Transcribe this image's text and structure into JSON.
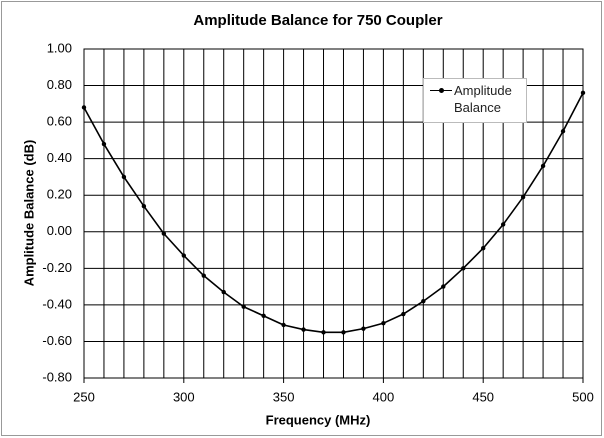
{
  "chart_data": {
    "type": "line",
    "title": "Amplitude Balance for 750 Coupler",
    "xlabel": "Frequency (MHz)",
    "ylabel": "Amplitude Balance (dB)",
    "x": [
      250,
      260,
      270,
      280,
      290,
      300,
      310,
      320,
      330,
      340,
      350,
      360,
      370,
      380,
      390,
      400,
      410,
      420,
      430,
      440,
      450,
      460,
      470,
      480,
      490,
      500
    ],
    "series": [
      {
        "name": "Amplitude Balance",
        "color": "#000000",
        "values": [
          0.68,
          0.48,
          0.3,
          0.14,
          -0.01,
          -0.13,
          -0.24,
          -0.33,
          -0.41,
          -0.46,
          -0.51,
          -0.535,
          -0.55,
          -0.55,
          -0.53,
          -0.5,
          -0.45,
          -0.38,
          -0.3,
          -0.2,
          -0.09,
          0.04,
          0.19,
          0.36,
          0.55,
          0.76
        ]
      }
    ],
    "xlim": [
      250,
      500
    ],
    "xticks": [
      250,
      300,
      350,
      400,
      450,
      500
    ],
    "xminorticks": [
      250,
      260,
      270,
      280,
      290,
      300,
      310,
      320,
      330,
      340,
      350,
      360,
      370,
      380,
      390,
      400,
      410,
      420,
      430,
      440,
      450,
      460,
      470,
      480,
      490,
      500
    ],
    "ylim": [
      -0.8,
      1.0
    ],
    "yticks": [
      {
        "value": -0.8,
        "label": "-0.80"
      },
      {
        "value": -0.6,
        "label": "-0.60"
      },
      {
        "value": -0.4,
        "label": "-0.40"
      },
      {
        "value": -0.2,
        "label": "-0.20"
      },
      {
        "value": 0,
        "label": "0.00"
      },
      {
        "value": 0.2,
        "label": "0.20"
      },
      {
        "value": 0.4,
        "label": "0.40"
      },
      {
        "value": 0.6,
        "label": "0.60"
      },
      {
        "value": 0.8,
        "label": "0.80"
      },
      {
        "value": 1.0,
        "label": "1.00"
      }
    ],
    "grid": true,
    "legend": "upper right"
  }
}
